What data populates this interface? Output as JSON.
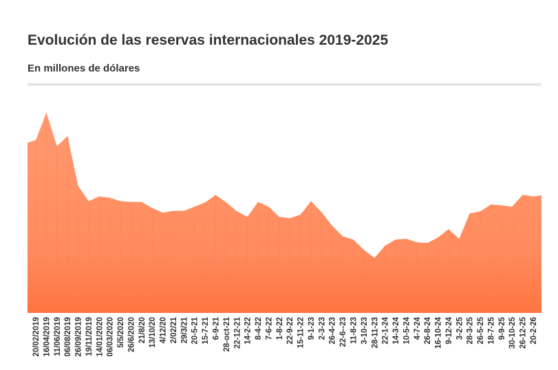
{
  "chart_data": {
    "type": "area",
    "title": "Evolución de las reservas internacionales 2019-2025",
    "subtitle": "En millones de dólares",
    "xlabel": "",
    "ylabel": "",
    "ylim": [
      0,
      77500
    ],
    "grid": false,
    "legend": "none",
    "color": "#FF8E63",
    "x": [
      "20/02/2019",
      "16/04/2019",
      "11/06/2019",
      "06/08/2019",
      "26/09/2019",
      "19/11/2019",
      "14/01/2020",
      "06/03/2020",
      "5/5/2020",
      "26/6/2020",
      "21/8/20",
      "13/10/20",
      "4/12/20",
      "2/02/21",
      "29/3/21",
      "20-5-21",
      "15-7-21",
      "6-9-21",
      "28-oct-21",
      "22-12-21",
      "14-2-22",
      "8-4-22",
      "7-6-22",
      "1-8-22",
      "22-9-22",
      "15-11-22",
      "9-1-23",
      "2-3-23",
      "26-4-23",
      "22-6--23",
      "11-8-23",
      "3-10-23",
      "28-11-23",
      "22-1-24",
      "14-3-24",
      "10-5-24",
      "4-7-24",
      "26-8-24",
      "16-10-24",
      "9-12-24",
      "3-2-25",
      "28-3-25",
      "26-5-25",
      "18-7-25",
      "9-9-25",
      "30-10-25",
      "26-12-25",
      "20-2-26"
    ],
    "values": [
      66000,
      76500,
      63700,
      67600,
      48500,
      42700,
      44500,
      44000,
      42700,
      42400,
      42400,
      40100,
      38300,
      39000,
      39000,
      40600,
      42200,
      45100,
      42200,
      38800,
      36700,
      42400,
      40600,
      36700,
      36200,
      37500,
      42700,
      38500,
      33300,
      29300,
      28000,
      24100,
      21000,
      25700,
      28000,
      28300,
      27000,
      26700,
      28800,
      32000,
      28300,
      38000,
      38800,
      41400,
      41100,
      40600,
      45100,
      44500
    ]
  }
}
